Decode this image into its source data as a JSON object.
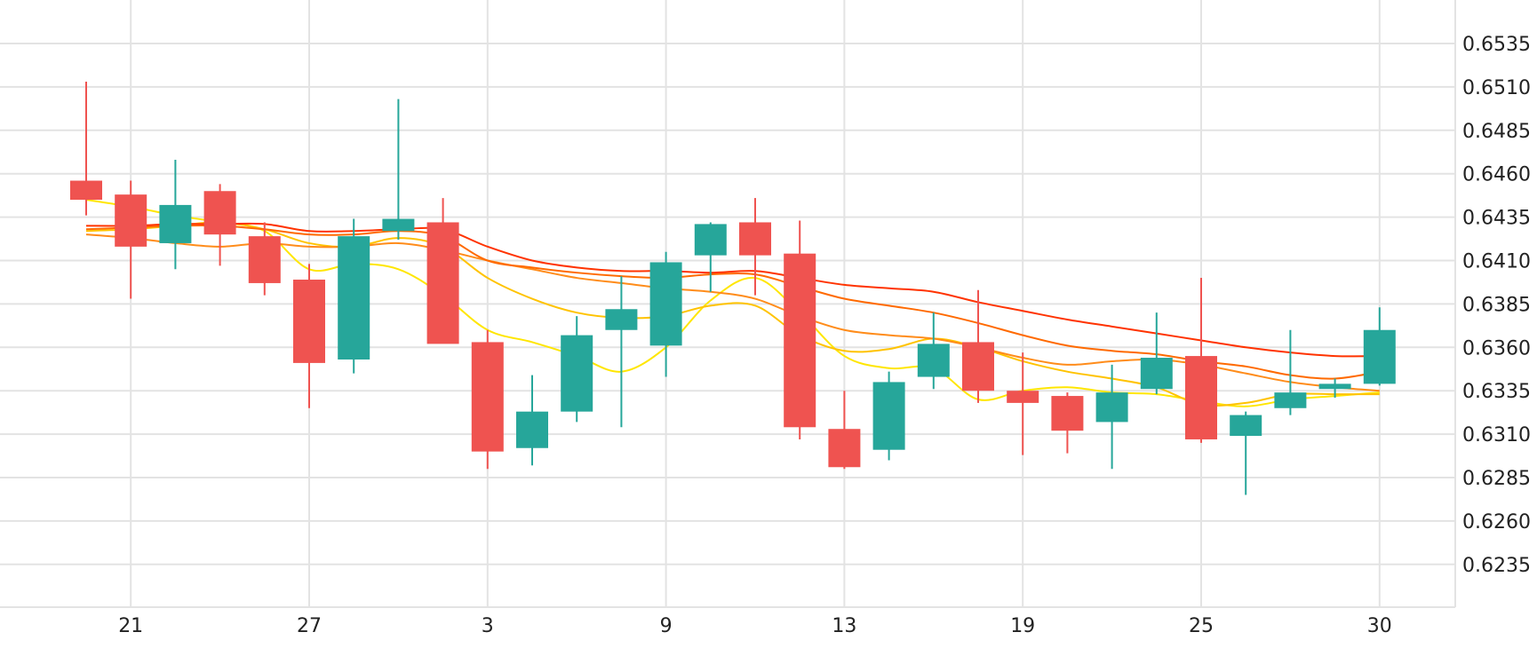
{
  "chart_data": {
    "type": "candlestick",
    "title": "",
    "xlabel": "",
    "ylabel": "",
    "ylim": [
      0.621,
      0.656
    ],
    "x_tick_labels": [
      "21",
      "27",
      "3",
      "9",
      "13",
      "19",
      "25",
      "30"
    ],
    "x_tick_candle_index": [
      1,
      5,
      9,
      13,
      17,
      21,
      25,
      29
    ],
    "y_ticks": [
      0.6235,
      0.626,
      0.6285,
      0.631,
      0.6335,
      0.636,
      0.6385,
      0.641,
      0.6435,
      0.646,
      0.6485,
      0.651,
      0.6535
    ],
    "y_tick_labels": [
      "0.6235",
      "0.6260",
      "0.6285",
      "0.6310",
      "0.6335",
      "0.6360",
      "0.6385",
      "0.6410",
      "0.6435",
      "0.6460",
      "0.6485",
      "0.6510",
      "0.6535"
    ],
    "grid": true,
    "colors": {
      "up": "#26a69a",
      "down": "#ef5350",
      "grid": "#e3e3e3"
    },
    "candles": [
      {
        "open": 0.6456,
        "high": 0.6513,
        "low": 0.6436,
        "close": 0.6445
      },
      {
        "open": 0.6448,
        "high": 0.6456,
        "low": 0.6388,
        "close": 0.6418
      },
      {
        "open": 0.642,
        "high": 0.6468,
        "low": 0.6405,
        "close": 0.6442
      },
      {
        "open": 0.645,
        "high": 0.6454,
        "low": 0.6407,
        "close": 0.6425
      },
      {
        "open": 0.6424,
        "high": 0.6432,
        "low": 0.639,
        "close": 0.6397
      },
      {
        "open": 0.6399,
        "high": 0.6408,
        "low": 0.6325,
        "close": 0.6351
      },
      {
        "open": 0.6353,
        "high": 0.6434,
        "low": 0.6345,
        "close": 0.6424
      },
      {
        "open": 0.6427,
        "high": 0.6503,
        "low": 0.6422,
        "close": 0.6434
      },
      {
        "open": 0.6432,
        "high": 0.6446,
        "low": 0.6365,
        "close": 0.6362
      },
      {
        "open": 0.6363,
        "high": 0.637,
        "low": 0.629,
        "close": 0.63
      },
      {
        "open": 0.6302,
        "high": 0.6344,
        "low": 0.6292,
        "close": 0.6323
      },
      {
        "open": 0.6323,
        "high": 0.6378,
        "low": 0.6317,
        "close": 0.6367
      },
      {
        "open": 0.637,
        "high": 0.6401,
        "low": 0.6314,
        "close": 0.6382
      },
      {
        "open": 0.6361,
        "high": 0.6415,
        "low": 0.6343,
        "close": 0.6409
      },
      {
        "open": 0.6413,
        "high": 0.6432,
        "low": 0.6392,
        "close": 0.6431
      },
      {
        "open": 0.6432,
        "high": 0.6446,
        "low": 0.639,
        "close": 0.6413
      },
      {
        "open": 0.6414,
        "high": 0.6433,
        "low": 0.6307,
        "close": 0.6314
      },
      {
        "open": 0.6313,
        "high": 0.6335,
        "low": 0.629,
        "close": 0.6291
      },
      {
        "open": 0.6301,
        "high": 0.6346,
        "low": 0.6295,
        "close": 0.634
      },
      {
        "open": 0.6343,
        "high": 0.638,
        "low": 0.6336,
        "close": 0.6362
      },
      {
        "open": 0.6363,
        "high": 0.6393,
        "low": 0.6328,
        "close": 0.6335
      },
      {
        "open": 0.6335,
        "high": 0.6357,
        "low": 0.6298,
        "close": 0.6328
      },
      {
        "open": 0.6332,
        "high": 0.6334,
        "low": 0.6299,
        "close": 0.6312
      },
      {
        "open": 0.6317,
        "high": 0.635,
        "low": 0.629,
        "close": 0.6334
      },
      {
        "open": 0.6336,
        "high": 0.638,
        "low": 0.6333,
        "close": 0.6354
      },
      {
        "open": 0.6355,
        "high": 0.64,
        "low": 0.6305,
        "close": 0.6307
      },
      {
        "open": 0.6309,
        "high": 0.6323,
        "low": 0.6275,
        "close": 0.6321
      },
      {
        "open": 0.6325,
        "high": 0.637,
        "low": 0.6321,
        "close": 0.6334
      },
      {
        "open": 0.6336,
        "high": 0.6342,
        "low": 0.6331,
        "close": 0.6339
      },
      {
        "open": 0.6339,
        "high": 0.6383,
        "low": 0.6338,
        "close": 0.637
      }
    ],
    "series": [
      {
        "color": "#ffe600",
        "values": [
          0.6445,
          0.6441,
          0.6436,
          0.6432,
          0.6427,
          0.6405,
          0.6408,
          0.6405,
          0.639,
          0.637,
          0.6363,
          0.6355,
          0.6346,
          0.636,
          0.6387,
          0.64,
          0.638,
          0.6355,
          0.6348,
          0.6348,
          0.633,
          0.6335,
          0.6337,
          0.6334,
          0.6333,
          0.6329,
          0.6326,
          0.633,
          0.6332,
          0.6334
        ]
      },
      {
        "color": "#ffc300",
        "values": [
          0.6427,
          0.6428,
          0.643,
          0.6432,
          0.6428,
          0.642,
          0.6418,
          0.6423,
          0.6418,
          0.64,
          0.6388,
          0.638,
          0.6377,
          0.6378,
          0.6384,
          0.6384,
          0.6367,
          0.6358,
          0.6359,
          0.6365,
          0.636,
          0.6352,
          0.6346,
          0.6342,
          0.6337,
          0.6327,
          0.6328,
          0.6333,
          0.6333,
          0.6333
        ]
      },
      {
        "color": "#ff8c1a",
        "values": [
          0.6425,
          0.6423,
          0.642,
          0.6418,
          0.642,
          0.6418,
          0.6418,
          0.642,
          0.6416,
          0.641,
          0.6405,
          0.64,
          0.6397,
          0.6394,
          0.6392,
          0.6388,
          0.6378,
          0.637,
          0.6367,
          0.6365,
          0.636,
          0.6354,
          0.635,
          0.6352,
          0.6353,
          0.635,
          0.6345,
          0.634,
          0.6337,
          0.6335
        ]
      },
      {
        "color": "#ff6a00",
        "values": [
          0.6428,
          0.6429,
          0.643,
          0.643,
          0.6428,
          0.6425,
          0.6425,
          0.6427,
          0.6424,
          0.641,
          0.6406,
          0.6403,
          0.6401,
          0.64,
          0.6402,
          0.6402,
          0.6395,
          0.6388,
          0.6384,
          0.638,
          0.6374,
          0.6367,
          0.6361,
          0.6358,
          0.6356,
          0.6352,
          0.6349,
          0.6344,
          0.6342,
          0.6346
        ]
      },
      {
        "color": "#ff3300",
        "values": [
          0.643,
          0.643,
          0.6431,
          0.6431,
          0.6431,
          0.6427,
          0.6427,
          0.6428,
          0.6428,
          0.6418,
          0.641,
          0.6406,
          0.6404,
          0.6404,
          0.6403,
          0.6404,
          0.64,
          0.6396,
          0.6394,
          0.6392,
          0.6386,
          0.6381,
          0.6376,
          0.6372,
          0.6368,
          0.6364,
          0.636,
          0.6357,
          0.6355,
          0.6355
        ]
      }
    ]
  }
}
